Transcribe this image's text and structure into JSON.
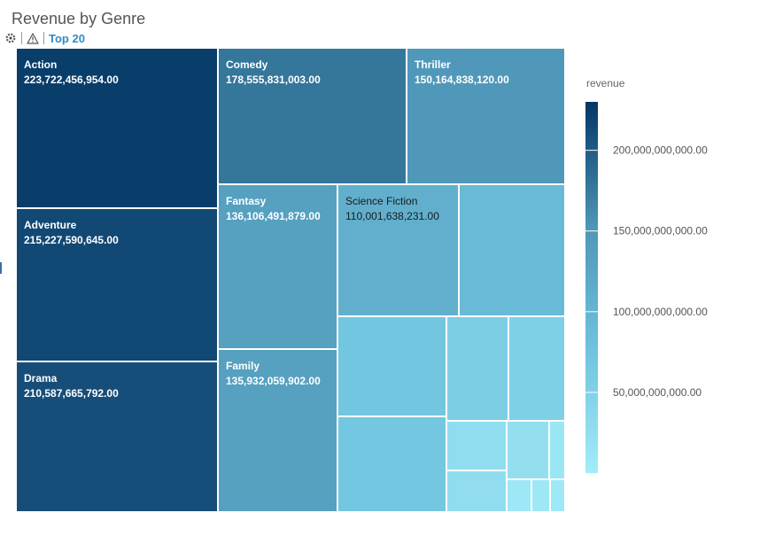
{
  "title": "Revenue by Genre",
  "toolbar": {
    "settings_icon": "gear-icon",
    "warning_icon": "warning-triangle-icon",
    "top_label": "Top 20"
  },
  "colors": {
    "scale_low": "#a3ecf9",
    "scale_high": "#033664",
    "border": "#ffffff",
    "label_dark": "#1a1a1a",
    "label_light": "#ffffff",
    "link": "#2f8ac4"
  },
  "chart_data": {
    "type": "treemap",
    "title": "Revenue by Genre",
    "color_measure": "revenue",
    "legend": {
      "title": "revenue",
      "position": "right",
      "ticks": [
        {
          "value": 200000000000,
          "label": "200,000,000,000.00"
        },
        {
          "value": 150000000000,
          "label": "150,000,000,000.00"
        },
        {
          "value": 100000000000,
          "label": "100,000,000,000.00"
        },
        {
          "value": 50000000000,
          "label": "50,000,000,000.00"
        }
      ],
      "range": [
        0,
        230000000000
      ]
    },
    "items": [
      {
        "label": "Action",
        "value": 223722456954.0,
        "value_label": "223,722,456,954.00"
      },
      {
        "label": "Adventure",
        "value": 215227590645.0,
        "value_label": "215,227,590,645.00"
      },
      {
        "label": "Drama",
        "value": 210587665792.0,
        "value_label": "210,587,665,792.00"
      },
      {
        "label": "Comedy",
        "value": 178555831003.0,
        "value_label": "178,555,831,003.00"
      },
      {
        "label": "Thriller",
        "value": 150164838120.0,
        "value_label": "150,164,838,120.00"
      },
      {
        "label": "Fantasy",
        "value": 136106491879.0,
        "value_label": "136,106,491,879.00"
      },
      {
        "label": "Family",
        "value": 135932059902.0,
        "value_label": "135,932,059,902.00"
      },
      {
        "label": "Science Fiction",
        "value": 110001638231.0,
        "value_label": "110,001,638,231.00"
      },
      {
        "label": "",
        "value": 92000000000,
        "value_label": ""
      },
      {
        "label": "",
        "value": 70000000000,
        "value_label": ""
      },
      {
        "label": "",
        "value": 68000000000,
        "value_label": ""
      },
      {
        "label": "",
        "value": 55000000000,
        "value_label": ""
      },
      {
        "label": "",
        "value": 52000000000,
        "value_label": ""
      },
      {
        "label": "",
        "value": 28000000000,
        "value_label": ""
      },
      {
        "label": "",
        "value": 27000000000,
        "value_label": ""
      },
      {
        "label": "",
        "value": 24000000000,
        "value_label": ""
      },
      {
        "label": "",
        "value": 11000000000,
        "value_label": ""
      },
      {
        "label": "",
        "value": 9000000000,
        "value_label": ""
      },
      {
        "label": "",
        "value": 8000000000,
        "value_label": ""
      },
      {
        "label": "",
        "value": 7000000000,
        "value_label": ""
      }
    ]
  }
}
